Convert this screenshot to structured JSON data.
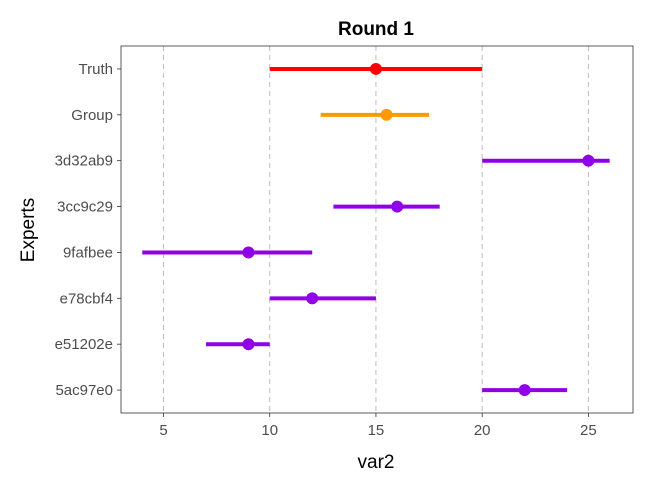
{
  "chart_data": {
    "type": "interval",
    "title": "Round 1",
    "xlabel": "var2",
    "ylabel": "Experts",
    "xlim": [
      3,
      27.1
    ],
    "xticks": [
      5,
      10,
      15,
      20,
      25
    ],
    "grid": "vertical dashed",
    "legend": "none",
    "series": [
      {
        "label": "Truth",
        "low": 10,
        "point": 15,
        "high": 20,
        "color": "#ff0000"
      },
      {
        "label": "Group",
        "low": 12.4,
        "point": 15.5,
        "high": 17.5,
        "color": "#ff9900"
      },
      {
        "label": "3d32ab9",
        "low": 20,
        "point": 25,
        "high": 26,
        "color": "#8f00e6"
      },
      {
        "label": "3cc9c29",
        "low": 13,
        "point": 16,
        "high": 18,
        "color": "#8f00e6"
      },
      {
        "label": "9fafbee",
        "low": 4,
        "point": 9,
        "high": 12,
        "color": "#8f00e6"
      },
      {
        "label": "e78cbf4",
        "low": 10,
        "point": 12,
        "high": 15,
        "color": "#8f00e6"
      },
      {
        "label": "e51202e",
        "low": 7,
        "point": 9,
        "high": 10,
        "color": "#8f00e6"
      },
      {
        "label": "5ac97e0",
        "low": 20,
        "point": 22,
        "high": 24,
        "color": "#8f00e6"
      }
    ]
  }
}
